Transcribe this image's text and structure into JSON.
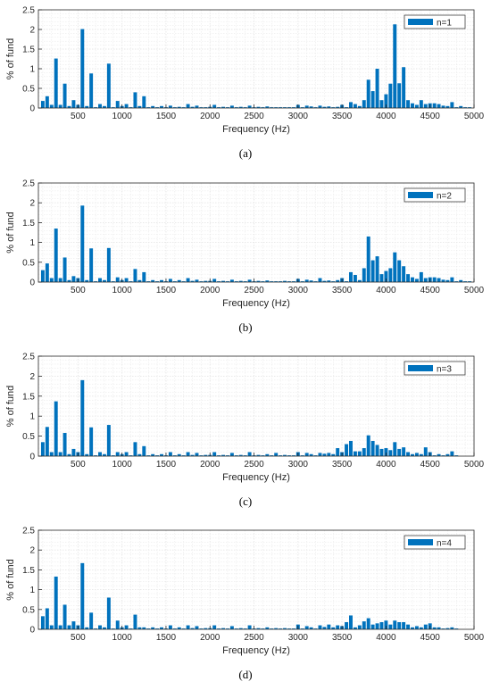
{
  "colors": {
    "bar": "#0072BD",
    "grid": "#e6e6e6",
    "axis": "#262626",
    "caption": "#000000"
  },
  "chart_data": [
    {
      "type": "bar",
      "caption": "(a)",
      "legend": "n=1",
      "legend_position": "top-right",
      "xlabel": "Frequency (Hz)",
      "ylabel": "% of fund",
      "xlim": [
        50,
        5000
      ],
      "ylim": [
        0,
        2.5
      ],
      "xticks": [
        "500",
        "1000",
        "1500",
        "2000",
        "2500",
        "3000",
        "3500",
        "4000",
        "4500",
        "5000"
      ],
      "yticks": [
        "0",
        "0.5",
        "1",
        "1.5",
        "2",
        "2.5"
      ],
      "grid": true,
      "x": [
        100,
        150,
        200,
        250,
        300,
        350,
        400,
        450,
        500,
        550,
        600,
        650,
        700,
        750,
        800,
        850,
        900,
        950,
        1000,
        1050,
        1100,
        1150,
        1200,
        1250,
        1300,
        1350,
        1400,
        1450,
        1500,
        1550,
        1600,
        1650,
        1700,
        1750,
        1800,
        1850,
        1900,
        1950,
        2000,
        2050,
        2100,
        2150,
        2200,
        2250,
        2300,
        2350,
        2400,
        2450,
        2500,
        2550,
        2600,
        2650,
        2700,
        2750,
        2800,
        2850,
        2900,
        2950,
        3000,
        3050,
        3100,
        3150,
        3200,
        3250,
        3300,
        3350,
        3400,
        3450,
        3500,
        3550,
        3600,
        3650,
        3700,
        3750,
        3800,
        3850,
        3900,
        3950,
        4000,
        4050,
        4100,
        4150,
        4200,
        4250,
        4300,
        4350,
        4400,
        4450,
        4500,
        4550,
        4600,
        4650,
        4700,
        4750,
        4800,
        4850,
        4900,
        4950
      ],
      "values": [
        0.18,
        0.3,
        0.08,
        1.26,
        0.08,
        0.62,
        0.05,
        0.2,
        0.08,
        2.01,
        0.05,
        0.88,
        0.02,
        0.1,
        0.05,
        1.13,
        0.02,
        0.18,
        0.05,
        0.1,
        0.02,
        0.4,
        0.05,
        0.3,
        0.02,
        0.05,
        0.02,
        0.05,
        0.02,
        0.06,
        0.02,
        0.03,
        0.02,
        0.1,
        0.03,
        0.06,
        0.02,
        0.02,
        0.03,
        0.08,
        0.02,
        0.03,
        0.02,
        0.06,
        0.02,
        0.03,
        0.02,
        0.06,
        0.02,
        0.03,
        0.02,
        0.04,
        0.02,
        0.02,
        0.02,
        0.02,
        0.02,
        0.02,
        0.08,
        0.02,
        0.06,
        0.04,
        0.02,
        0.06,
        0.03,
        0.04,
        0.02,
        0.03,
        0.08,
        0.02,
        0.15,
        0.1,
        0.05,
        0.2,
        0.72,
        0.43,
        1.0,
        0.2,
        0.35,
        0.62,
        2.13,
        0.63,
        1.04,
        0.2,
        0.12,
        0.08,
        0.2,
        0.1,
        0.12,
        0.12,
        0.1,
        0.06,
        0.05,
        0.15,
        0.02,
        0.05,
        0.02,
        0.02
      ]
    },
    {
      "type": "bar",
      "caption": "(b)",
      "legend": "n=2",
      "legend_position": "top-right",
      "xlabel": "Frequency (Hz)",
      "ylabel": "% of fund",
      "xlim": [
        50,
        5000
      ],
      "ylim": [
        0,
        2.5
      ],
      "xticks": [
        "500",
        "1000",
        "1500",
        "2000",
        "2500",
        "3000",
        "3500",
        "4000",
        "4500",
        "5000"
      ],
      "yticks": [
        "0",
        "0.5",
        "1",
        "1.5",
        "2",
        "2.5"
      ],
      "grid": true,
      "x": [
        100,
        150,
        200,
        250,
        300,
        350,
        400,
        450,
        500,
        550,
        600,
        650,
        700,
        750,
        800,
        850,
        900,
        950,
        1000,
        1050,
        1100,
        1150,
        1200,
        1250,
        1300,
        1350,
        1400,
        1450,
        1500,
        1550,
        1600,
        1650,
        1700,
        1750,
        1800,
        1850,
        1900,
        1950,
        2000,
        2050,
        2100,
        2150,
        2200,
        2250,
        2300,
        2350,
        2400,
        2450,
        2500,
        2550,
        2600,
        2650,
        2700,
        2750,
        2800,
        2850,
        2900,
        2950,
        3000,
        3050,
        3100,
        3150,
        3200,
        3250,
        3300,
        3350,
        3400,
        3450,
        3500,
        3550,
        3600,
        3650,
        3700,
        3750,
        3800,
        3850,
        3900,
        3950,
        4000,
        4050,
        4100,
        4150,
        4200,
        4250,
        4300,
        4350,
        4400,
        4450,
        4500,
        4550,
        4600,
        4650,
        4700,
        4750,
        4800,
        4850,
        4900,
        4950
      ],
      "values": [
        0.3,
        0.47,
        0.1,
        1.35,
        0.1,
        0.62,
        0.05,
        0.15,
        0.1,
        1.93,
        0.05,
        0.85,
        0.02,
        0.1,
        0.05,
        0.86,
        0.02,
        0.12,
        0.05,
        0.1,
        0.02,
        0.33,
        0.05,
        0.25,
        0.02,
        0.05,
        0.02,
        0.05,
        0.02,
        0.08,
        0.02,
        0.05,
        0.02,
        0.1,
        0.03,
        0.06,
        0.02,
        0.03,
        0.03,
        0.08,
        0.02,
        0.03,
        0.02,
        0.06,
        0.02,
        0.03,
        0.02,
        0.06,
        0.02,
        0.03,
        0.02,
        0.04,
        0.02,
        0.02,
        0.02,
        0.03,
        0.02,
        0.02,
        0.08,
        0.02,
        0.06,
        0.04,
        0.02,
        0.1,
        0.03,
        0.04,
        0.02,
        0.05,
        0.1,
        0.02,
        0.25,
        0.18,
        0.05,
        0.35,
        1.15,
        0.55,
        0.65,
        0.2,
        0.28,
        0.35,
        0.75,
        0.55,
        0.4,
        0.2,
        0.12,
        0.08,
        0.25,
        0.1,
        0.12,
        0.12,
        0.1,
        0.06,
        0.05,
        0.12,
        0.02,
        0.05,
        0.02,
        0.02
      ]
    },
    {
      "type": "bar",
      "caption": "(c)",
      "legend": "n=3",
      "legend_position": "top-right",
      "xlabel": "Frequency (Hz)",
      "ylabel": "% of fund",
      "xlim": [
        50,
        5000
      ],
      "ylim": [
        0,
        2.5
      ],
      "xticks": [
        "500",
        "1000",
        "1500",
        "2000",
        "2500",
        "3000",
        "3500",
        "4000",
        "4500",
        "5000"
      ],
      "yticks": [
        "0",
        "0.5",
        "1",
        "1.5",
        "2",
        "2.5"
      ],
      "grid": true,
      "x": [
        100,
        150,
        200,
        250,
        300,
        350,
        400,
        450,
        500,
        550,
        600,
        650,
        700,
        750,
        800,
        850,
        900,
        950,
        1000,
        1050,
        1100,
        1150,
        1200,
        1250,
        1300,
        1350,
        1400,
        1450,
        1500,
        1550,
        1600,
        1650,
        1700,
        1750,
        1800,
        1850,
        1900,
        1950,
        2000,
        2050,
        2100,
        2150,
        2200,
        2250,
        2300,
        2350,
        2400,
        2450,
        2500,
        2550,
        2600,
        2650,
        2700,
        2750,
        2800,
        2850,
        2900,
        2950,
        3000,
        3050,
        3100,
        3150,
        3200,
        3250,
        3300,
        3350,
        3400,
        3450,
        3500,
        3550,
        3600,
        3650,
        3700,
        3750,
        3800,
        3850,
        3900,
        3950,
        4000,
        4050,
        4100,
        4150,
        4200,
        4250,
        4300,
        4350,
        4400,
        4450,
        4500,
        4550,
        4600,
        4650,
        4700,
        4750,
        4800,
        4850,
        4900,
        4950
      ],
      "values": [
        0.35,
        0.73,
        0.1,
        1.37,
        0.1,
        0.58,
        0.05,
        0.18,
        0.1,
        1.9,
        0.05,
        0.72,
        0.02,
        0.1,
        0.05,
        0.78,
        0.02,
        0.1,
        0.05,
        0.1,
        0.02,
        0.35,
        0.05,
        0.25,
        0.02,
        0.05,
        0.02,
        0.05,
        0.02,
        0.1,
        0.02,
        0.05,
        0.02,
        0.1,
        0.03,
        0.08,
        0.02,
        0.03,
        0.03,
        0.1,
        0.02,
        0.03,
        0.02,
        0.08,
        0.02,
        0.03,
        0.02,
        0.1,
        0.02,
        0.03,
        0.02,
        0.05,
        0.02,
        0.08,
        0.02,
        0.03,
        0.02,
        0.02,
        0.1,
        0.02,
        0.08,
        0.05,
        0.02,
        0.08,
        0.06,
        0.08,
        0.05,
        0.2,
        0.1,
        0.3,
        0.38,
        0.12,
        0.12,
        0.2,
        0.52,
        0.38,
        0.28,
        0.18,
        0.2,
        0.15,
        0.35,
        0.18,
        0.22,
        0.1,
        0.05,
        0.08,
        0.05,
        0.22,
        0.1,
        0.02,
        0.05,
        0.02,
        0.05,
        0.12,
        0.02,
        0.0,
        0.0,
        0.0
      ]
    },
    {
      "type": "bar",
      "caption": "(d)",
      "legend": "n=4",
      "legend_position": "top-right",
      "xlabel": "Frequency (Hz)",
      "ylabel": "% of fund",
      "xlim": [
        50,
        5000
      ],
      "ylim": [
        0,
        2.5
      ],
      "xticks": [
        "500",
        "1000",
        "1500",
        "2000",
        "2500",
        "3000",
        "3500",
        "4000",
        "4500",
        "5000"
      ],
      "yticks": [
        "0",
        "0.5",
        "1",
        "1.5",
        "2",
        "2.5"
      ],
      "grid": true,
      "x": [
        100,
        150,
        200,
        250,
        300,
        350,
        400,
        450,
        500,
        550,
        600,
        650,
        700,
        750,
        800,
        850,
        900,
        950,
        1000,
        1050,
        1100,
        1150,
        1200,
        1250,
        1300,
        1350,
        1400,
        1450,
        1500,
        1550,
        1600,
        1650,
        1700,
        1750,
        1800,
        1850,
        1900,
        1950,
        2000,
        2050,
        2100,
        2150,
        2200,
        2250,
        2300,
        2350,
        2400,
        2450,
        2500,
        2550,
        2600,
        2650,
        2700,
        2750,
        2800,
        2850,
        2900,
        2950,
        3000,
        3050,
        3100,
        3150,
        3200,
        3250,
        3300,
        3350,
        3400,
        3450,
        3500,
        3550,
        3600,
        3650,
        3700,
        3750,
        3800,
        3850,
        3900,
        3950,
        4000,
        4050,
        4100,
        4150,
        4200,
        4250,
        4300,
        4350,
        4400,
        4450,
        4500,
        4550,
        4600,
        4650,
        4700,
        4750,
        4800,
        4850,
        4900,
        4950
      ],
      "values": [
        0.33,
        0.53,
        0.1,
        1.33,
        0.1,
        0.62,
        0.1,
        0.2,
        0.1,
        1.67,
        0.05,
        0.42,
        0.02,
        0.1,
        0.05,
        0.8,
        0.02,
        0.22,
        0.05,
        0.1,
        0.02,
        0.37,
        0.05,
        0.05,
        0.02,
        0.05,
        0.02,
        0.05,
        0.02,
        0.1,
        0.02,
        0.05,
        0.02,
        0.1,
        0.03,
        0.08,
        0.02,
        0.03,
        0.03,
        0.1,
        0.02,
        0.03,
        0.02,
        0.08,
        0.02,
        0.03,
        0.02,
        0.1,
        0.02,
        0.03,
        0.02,
        0.05,
        0.02,
        0.03,
        0.02,
        0.03,
        0.02,
        0.02,
        0.12,
        0.02,
        0.08,
        0.05,
        0.02,
        0.1,
        0.06,
        0.12,
        0.05,
        0.1,
        0.08,
        0.18,
        0.35,
        0.05,
        0.1,
        0.2,
        0.28,
        0.12,
        0.15,
        0.18,
        0.22,
        0.12,
        0.22,
        0.18,
        0.18,
        0.12,
        0.05,
        0.08,
        0.05,
        0.12,
        0.15,
        0.05,
        0.05,
        0.02,
        0.03,
        0.05,
        0.02,
        0.0,
        0.0,
        0.0
      ]
    }
  ]
}
